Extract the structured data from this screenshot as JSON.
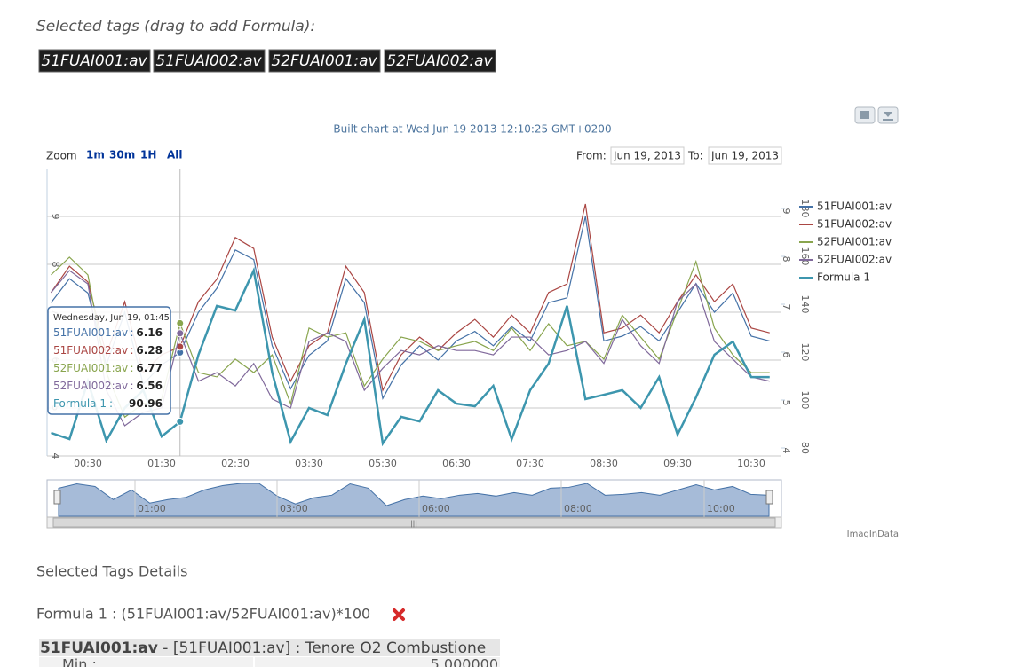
{
  "header": {
    "title": "Selected tags (drag to add Formula):",
    "tags": [
      "51FUAI001:av",
      "51FUAI002:av",
      "52FUAI001:av",
      "52FUAI002:av"
    ]
  },
  "chart_data": {
    "type": "line",
    "subtitle": "Built chart at Wed Jun 19 2013 12:10:25 GMT+0200",
    "zoom": {
      "label": "Zoom",
      "buttons": [
        "1m",
        "30m",
        "1H",
        "All"
      ]
    },
    "range": {
      "from_label": "From:",
      "from": "Jun 19, 2013",
      "to_label": "To:",
      "to": "Jun 19, 2013"
    },
    "categories": [
      null,
      null,
      "00:30",
      null,
      null,
      null,
      "01:30",
      null,
      null,
      null,
      "02:30",
      null,
      null,
      null,
      "03:30",
      null,
      null,
      null,
      "05:30",
      null,
      null,
      null,
      "06:30",
      null,
      null,
      null,
      "07:30",
      null,
      null,
      null,
      "08:30",
      null,
      null,
      null,
      "09:30",
      null,
      null,
      null,
      "10:30",
      null
    ],
    "ylim": [
      4,
      10
    ],
    "yticks": [
      4,
      5,
      6,
      7,
      8,
      9
    ],
    "y2lim": [
      76.67,
      196.67
    ],
    "y2ticks": [
      80,
      100,
      120,
      140,
      160,
      180
    ],
    "grid": true,
    "legend": "right",
    "series": [
      {
        "name": "51FUAI001:av",
        "color": "#4572a7",
        "values": [
          7.2,
          7.7,
          7.4,
          5.9,
          7.0,
          5.5,
          5.9,
          6.16,
          7.0,
          7.5,
          8.3,
          8.1,
          6.3,
          5.4,
          6.1,
          6.4,
          7.7,
          7.2,
          5.2,
          5.9,
          6.3,
          6.0,
          6.4,
          6.6,
          6.3,
          6.7,
          6.4,
          7.2,
          7.3,
          9.0,
          6.4,
          6.5,
          6.7,
          6.4,
          7.0,
          7.6,
          7.0,
          7.4,
          6.5,
          6.4
        ]
      },
      {
        "name": "51FUAI002:av",
        "color": "#aa4643",
        "values": [
          7.41,
          7.96,
          7.63,
          6.11,
          7.22,
          5.74,
          6.11,
          6.28,
          7.22,
          7.69,
          8.56,
          8.33,
          6.48,
          5.56,
          6.3,
          6.57,
          7.96,
          7.41,
          5.37,
          6.11,
          6.48,
          6.2,
          6.57,
          6.85,
          6.48,
          6.94,
          6.57,
          7.41,
          7.59,
          9.26,
          6.57,
          6.67,
          6.94,
          6.57,
          7.22,
          7.78,
          7.22,
          7.59,
          6.67,
          6.57
        ]
      },
      {
        "name": "52FUAI001:av",
        "color": "#89a54e",
        "values": [
          7.78,
          8.15,
          7.78,
          5.74,
          4.81,
          5.09,
          5.19,
          6.77,
          5.74,
          5.65,
          6.02,
          5.74,
          6.11,
          5.09,
          6.67,
          6.48,
          6.57,
          5.46,
          6.02,
          6.48,
          6.39,
          6.2,
          6.3,
          6.39,
          6.2,
          6.67,
          6.2,
          6.76,
          6.3,
          6.39,
          6.02,
          6.94,
          6.48,
          6.02,
          7.04,
          8.06,
          6.67,
          6.11,
          5.74,
          5.74
        ]
      },
      {
        "name": "52FUAI002:av",
        "color": "#80699b",
        "values": [
          7.41,
          7.87,
          7.59,
          5.37,
          4.63,
          4.91,
          5.0,
          6.56,
          5.56,
          5.74,
          5.46,
          5.93,
          5.19,
          5.0,
          6.39,
          6.57,
          6.39,
          5.37,
          5.83,
          6.2,
          6.11,
          6.3,
          6.2,
          6.2,
          6.11,
          6.48,
          6.48,
          6.11,
          6.2,
          6.39,
          5.93,
          6.85,
          6.3,
          5.93,
          7.22,
          7.59,
          6.39,
          6.02,
          5.65,
          5.56
        ]
      },
      {
        "name": "Formula 1",
        "color": "#3d96ae",
        "axis": "y2",
        "values": [
          86.3,
          83.7,
          107.8,
          83.0,
          96.7,
          104.1,
          84.8,
          90.96,
          118.9,
          139.3,
          137.4,
          154.1,
          111.5,
          82.6,
          96.7,
          93.7,
          115.2,
          133.7,
          81.9,
          93.0,
          91.1,
          104.1,
          98.5,
          97.4,
          105.9,
          83.7,
          104.1,
          115.2,
          139.3,
          100.4,
          102.2,
          104.1,
          96.7,
          109.6,
          85.6,
          101.1,
          118.9,
          124.4,
          109.6,
          109.6
        ]
      }
    ],
    "tooltip": {
      "title": "Wednesday, Jun 19, 01:45",
      "index": 7
    },
    "navigator_labels": [
      "01:00",
      "03:00",
      "06:00",
      "08:00",
      "10:00"
    ],
    "credits": "ImagInData"
  },
  "details": {
    "title": "Selected Tags Details",
    "formula": "Formula 1 : (51FUAI001:av/52FUAI001:av)*100",
    "table": {
      "tag": "51FUAI001:av",
      "description": " - [51FUAI001:av] : Tenore O2 Combustione",
      "rows": [
        [
          "Min :",
          "5.000000"
        ]
      ]
    }
  }
}
